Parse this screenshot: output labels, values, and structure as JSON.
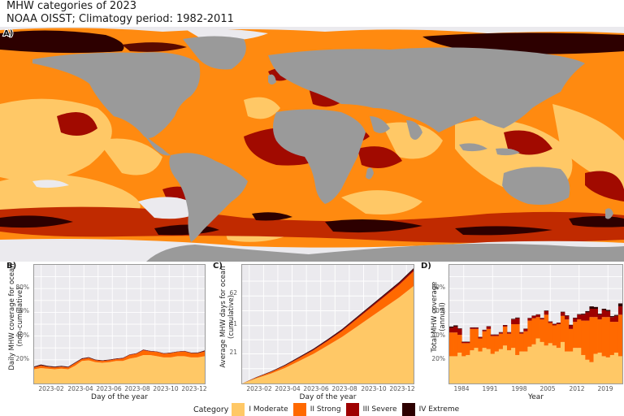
{
  "figure": {
    "title": "MHW categories of 2023",
    "subtitle": "NOAA OISST; Climatogy period: 1982-2011"
  },
  "colors": {
    "moderate": "#ffc866",
    "strong": "#ff6900",
    "severe": "#9e0000",
    "extreme": "#2d0000",
    "land": "#9a9a9a",
    "no_mhw": "#ebeaee",
    "panel_bg": "#ebeaee"
  },
  "panels": {
    "A": {
      "label": "A)",
      "type": "map",
      "description": "Global map of maximum MHW category per pixel in 2023"
    },
    "B": {
      "label": "B)",
      "ylabel_line1": "Daily MHW coverage for ocean",
      "ylabel_line2": "(non-cumulative)",
      "xlabel": "Day of the year",
      "yticks": [
        "20%",
        "40%",
        "60%",
        "80%"
      ],
      "xticks": [
        "2023-02",
        "2023-04",
        "2023-06",
        "2023-08",
        "2023-10",
        "2023-12"
      ]
    },
    "C": {
      "label": "C)",
      "ylabel_line1": "Average MHW days for ocean",
      "ylabel_line2": "(cumulative)",
      "xlabel": "Day of the year",
      "yticks": [
        "21",
        "41",
        "62"
      ],
      "xticks": [
        "2023-02",
        "2023-04",
        "2023-06",
        "2023-08",
        "2023-10",
        "2023-12"
      ]
    },
    "D": {
      "label": "D)",
      "ylabel_line1": "Total MHW coverage",
      "ylabel_line2": "(annual)",
      "xlabel": "Year",
      "yticks": [
        "20%",
        "40%",
        "60%",
        "80%"
      ],
      "xticks": [
        "1984",
        "1991",
        "1998",
        "2005",
        "2012",
        "2019"
      ]
    }
  },
  "legend": {
    "title": "Category",
    "items": [
      {
        "label": "I Moderate",
        "color": "#ffc866"
      },
      {
        "label": "II Strong",
        "color": "#ff6900"
      },
      {
        "label": "III Severe",
        "color": "#9e0000"
      },
      {
        "label": "IV Extreme",
        "color": "#2d0000"
      }
    ]
  },
  "chart_data": [
    {
      "panel": "B",
      "type": "area",
      "title": "Daily MHW coverage for ocean (non-cumulative)",
      "xlabel": "Day of the year",
      "ylabel": "Daily MHW coverage for ocean (non-cumulative)",
      "ylim": [
        0,
        100
      ],
      "x": [
        "2023-01-01",
        "2023-01-15",
        "2023-02-01",
        "2023-02-15",
        "2023-03-01",
        "2023-03-10",
        "2023-03-20",
        "2023-04-01",
        "2023-04-15",
        "2023-05-01",
        "2023-05-15",
        "2023-06-01",
        "2023-06-15",
        "2023-07-01",
        "2023-07-15",
        "2023-08-01",
        "2023-08-15",
        "2023-09-01",
        "2023-09-15",
        "2023-10-01",
        "2023-10-15",
        "2023-11-01",
        "2023-11-15",
        "2023-12-01",
        "2023-12-15",
        "2023-12-31"
      ],
      "series": [
        {
          "name": "I Moderate",
          "values": [
            12,
            13,
            12.5,
            12,
            12.5,
            12,
            15,
            19,
            19.5,
            18,
            17.5,
            18,
            19,
            19,
            21,
            22,
            24,
            24,
            23,
            22,
            22,
            23,
            23,
            22,
            22,
            23
          ]
        },
        {
          "name": "II Strong",
          "values": [
            1.5,
            2,
            1.5,
            1.5,
            1.5,
            1.5,
            2,
            1.5,
            2,
            1.5,
            1.5,
            1.5,
            1.5,
            2,
            3,
            3,
            4,
            3,
            3.5,
            3,
            3.5,
            3.5,
            4,
            3.5,
            3.5,
            4
          ]
        },
        {
          "name": "III Severe",
          "values": [
            0.3,
            0.4,
            0.3,
            0.3,
            0.3,
            0.3,
            0.3,
            0.3,
            0.3,
            0.3,
            0.3,
            0.3,
            0.3,
            0.3,
            0.3,
            0.3,
            0.4,
            0.3,
            0.3,
            0.3,
            0.3,
            0.3,
            0.3,
            0.3,
            0.3,
            0.4
          ]
        },
        {
          "name": "IV Extreme",
          "values": [
            0.5,
            0.6,
            0.5,
            0.5,
            0.5,
            0.4,
            0.4,
            0.4,
            0.4,
            0.3,
            0.3,
            0.3,
            0.3,
            0.3,
            0.2,
            0.2,
            0.2,
            0.2,
            0.2,
            0.2,
            0.2,
            0.2,
            0.2,
            0.2,
            0.3,
            0.4
          ]
        }
      ],
      "yticks": [
        "20%",
        "40%",
        "60%",
        "80%"
      ],
      "xticks": [
        "2023-02",
        "2023-04",
        "2023-06",
        "2023-08",
        "2023-10",
        "2023-12"
      ],
      "grid": true
    },
    {
      "panel": "C",
      "type": "area",
      "title": "Average MHW days for ocean (cumulative)",
      "xlabel": "Day of the year",
      "ylabel": "Average MHW days for ocean (cumulative)",
      "ylim": [
        0,
        84
      ],
      "x": [
        "2023-01-01",
        "2023-02-01",
        "2023-03-01",
        "2023-04-01",
        "2023-05-01",
        "2023-06-01",
        "2023-07-01",
        "2023-08-01",
        "2023-09-01",
        "2023-10-01",
        "2023-11-01",
        "2023-12-01",
        "2023-12-31"
      ],
      "series": [
        {
          "name": "I Moderate",
          "values": [
            0,
            3.7,
            7,
            11,
            16,
            21,
            27,
            33,
            40,
            47,
            54,
            61,
            69
          ]
        },
        {
          "name": "II Strong",
          "values": [
            0,
            0.5,
            1,
            1.5,
            2,
            2.6,
            3.2,
            4.2,
            5.4,
            6.6,
            7.8,
            9,
            10.5
          ]
        },
        {
          "name": "III Severe",
          "values": [
            0,
            0.1,
            0.2,
            0.3,
            0.4,
            0.5,
            0.6,
            0.7,
            0.8,
            0.9,
            1,
            1.1,
            1.2
          ]
        },
        {
          "name": "IV Extreme",
          "values": [
            0,
            0.2,
            0.3,
            0.4,
            0.5,
            0.55,
            0.6,
            0.65,
            0.7,
            0.75,
            0.8,
            0.85,
            0.9
          ]
        }
      ],
      "yticks": [
        "21",
        "41",
        "62"
      ],
      "xticks": [
        "2023-02",
        "2023-04",
        "2023-06",
        "2023-08",
        "2023-10",
        "2023-12"
      ],
      "grid": true
    },
    {
      "panel": "D",
      "type": "bar",
      "stacked": true,
      "title": "Total MHW coverage (annual)",
      "xlabel": "Year",
      "ylabel": "Total MHW coverage (annual)",
      "ylim": [
        0,
        100
      ],
      "categories": [
        1982,
        1983,
        1984,
        1985,
        1986,
        1987,
        1988,
        1989,
        1990,
        1991,
        1992,
        1993,
        1994,
        1995,
        1996,
        1997,
        1998,
        1999,
        2000,
        2001,
        2002,
        2003,
        2004,
        2005,
        2006,
        2007,
        2008,
        2009,
        2010,
        2011,
        2012,
        2013,
        2014,
        2015,
        2016,
        2017,
        2018,
        2019,
        2020,
        2021,
        2022,
        2023
      ],
      "series": [
        {
          "name": "I Moderate",
          "values": [
            23,
            23,
            26,
            23,
            24,
            28,
            30,
            27,
            30,
            29,
            25,
            27,
            29,
            32,
            28,
            30,
            24,
            27,
            27,
            31,
            33,
            38,
            35,
            32,
            34,
            32,
            30,
            35,
            27,
            27,
            30,
            30,
            24,
            20,
            18,
            25,
            26,
            23,
            22,
            24,
            26,
            23
          ]
        },
        {
          "name": "II Strong",
          "values": [
            20,
            20,
            15,
            11,
            10,
            18,
            16,
            11,
            14,
            17,
            15,
            13,
            13,
            16,
            14,
            20,
            26,
            15,
            17,
            22,
            22,
            18,
            19,
            26,
            17,
            17,
            20,
            22,
            27,
            19,
            22,
            24,
            29,
            33,
            38,
            31,
            28,
            33,
            34,
            28,
            26,
            35
          ]
        },
        {
          "name": "III Severe",
          "values": [
            4,
            5,
            5,
            1,
            1,
            1,
            1,
            1,
            1,
            2,
            1,
            1,
            1,
            1,
            1,
            4,
            5,
            1,
            2,
            2,
            2,
            2,
            1,
            3,
            1,
            1,
            1,
            3,
            3,
            3,
            3,
            4,
            5,
            7,
            7,
            7,
            4,
            6,
            5,
            4,
            5,
            7
          ]
        },
        {
          "name": "IV Extreme",
          "values": [
            1,
            1,
            0.5,
            0.3,
            0.3,
            0.3,
            0.3,
            0.3,
            0.3,
            0.3,
            0.3,
            0.3,
            0.3,
            0.3,
            0.3,
            0.5,
            0.6,
            0.3,
            0.3,
            0.3,
            0.3,
            0.3,
            0.3,
            0.5,
            0.3,
            0.3,
            0.3,
            0.5,
            0.5,
            0.5,
            0.5,
            0.5,
            0.8,
            1,
            2,
            1.5,
            0.8,
            1,
            1,
            0.8,
            0.8,
            2.5
          ]
        }
      ],
      "yticks": [
        "20%",
        "40%",
        "60%",
        "80%"
      ],
      "xticks": [
        "1984",
        "1991",
        "1998",
        "2005",
        "2012",
        "2019"
      ],
      "grid": true
    }
  ]
}
